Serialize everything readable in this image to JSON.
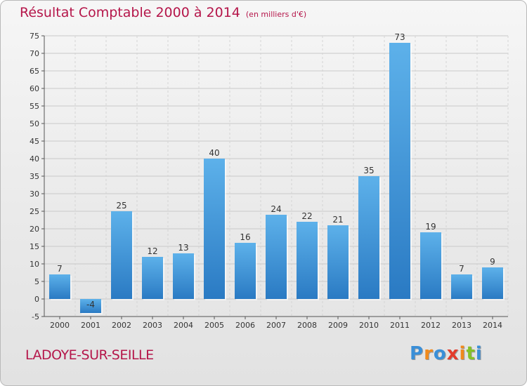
{
  "title": "Résultat Comptable 2000 à 2014",
  "subtitle": "(en milliers d'€)",
  "town": "LADOYE-SUR-SEILLE",
  "logo": {
    "letters": [
      "P",
      "r",
      "o",
      "x",
      "i",
      "t",
      "i"
    ],
    "colors": [
      "#3a8fd8",
      "#f08a1c",
      "#3a8fd8",
      "#e33c2c",
      "#f08a1c",
      "#84c227",
      "#3a8fd8"
    ]
  },
  "colors": {
    "bar_top": "#5db1ea",
    "bar_bottom": "#2a7ac3",
    "title": "#b5164a"
  },
  "chart_data": {
    "type": "bar",
    "categories": [
      "2000",
      "2001",
      "2002",
      "2003",
      "2004",
      "2005",
      "2006",
      "2007",
      "2008",
      "2009",
      "2010",
      "2011",
      "2012",
      "2013",
      "2014"
    ],
    "values": [
      7,
      -4,
      25,
      12,
      13,
      40,
      16,
      24,
      22,
      21,
      35,
      73,
      19,
      7,
      9
    ],
    "data_labels": [
      "7",
      "-4",
      "25",
      "12",
      "13",
      "40",
      "16",
      "24",
      "22",
      "21",
      "35",
      "73",
      "19",
      "7",
      "9"
    ],
    "yticks": [
      "-5",
      "0",
      "5",
      "10",
      "15",
      "20",
      "25",
      "30",
      "35",
      "40",
      "45",
      "50",
      "55",
      "60",
      "65",
      "70",
      "75"
    ],
    "ylim": [
      -5,
      75
    ],
    "grid": true,
    "title": "Résultat Comptable 2000 à 2014",
    "subtitle": "(en milliers d'€)"
  }
}
